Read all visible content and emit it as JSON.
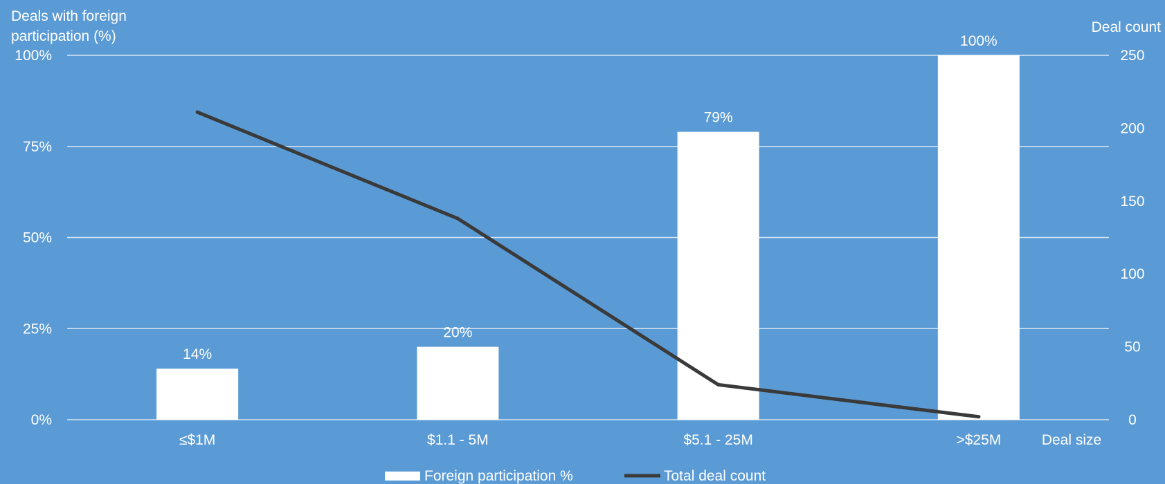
{
  "chart_data": {
    "type": "bar",
    "categories": [
      "≤$1M",
      "$1.1 - 5M",
      "$5.1 - 25M",
      ">$25M"
    ],
    "series": [
      {
        "name": "Foreign participation %",
        "kind": "bar",
        "axis": "left",
        "values": [
          14,
          20,
          79,
          100
        ],
        "labels": [
          "14%",
          "20%",
          "79%",
          "100%"
        ]
      },
      {
        "name": "Total deal count",
        "kind": "line",
        "axis": "right",
        "values": [
          211,
          138,
          24,
          2
        ]
      }
    ],
    "ylabel_left": "Deals with foreign participation (%)",
    "ylabel_left_lines": [
      "Deals with foreign",
      "participation (%)"
    ],
    "ylabel_right": "Deal count",
    "xlabel": "Deal size",
    "ylim_left": [
      0,
      100
    ],
    "ylim_right": [
      0,
      250
    ],
    "yticks_left": [
      "0%",
      "25%",
      "50%",
      "75%",
      "100%"
    ],
    "yticks_left_values": [
      0,
      25,
      50,
      75,
      100
    ],
    "yticks_right": [
      "0",
      "50",
      "100",
      "150",
      "200",
      "250"
    ],
    "yticks_right_values": [
      0,
      50,
      100,
      150,
      200,
      250
    ],
    "grid": true,
    "legend_position": "bottom",
    "colors": {
      "background": "#5b9bd5",
      "bars": "#ffffff",
      "line": "#3a3a3a",
      "gridlines": "#d6e4f3",
      "text": "#ffffff"
    }
  }
}
